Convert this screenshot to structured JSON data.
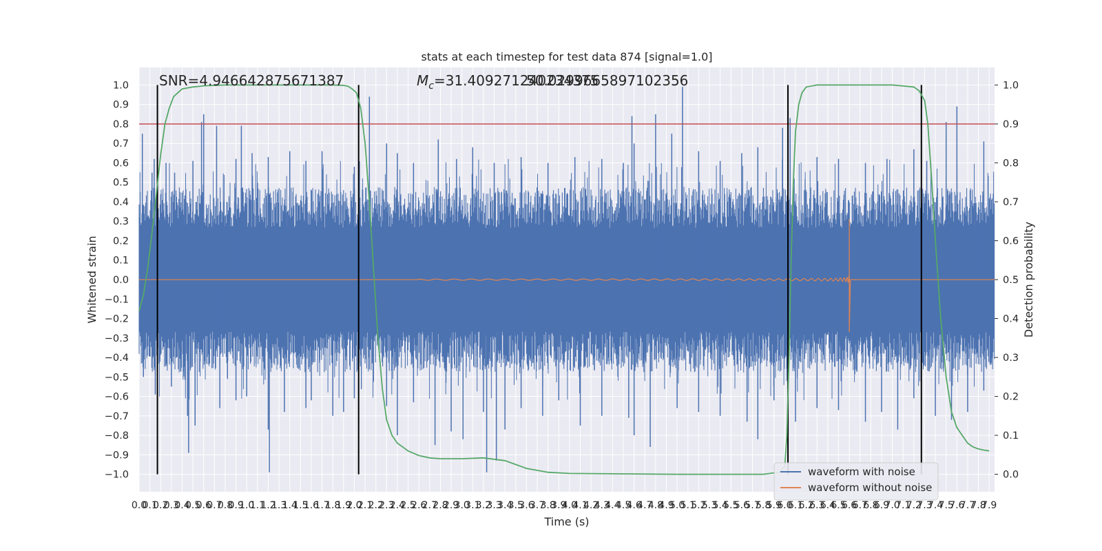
{
  "chart_data": {
    "type": "line",
    "title": "stats at each timestep for test data 874 [signal=1.0]",
    "xlabel": "Time (s)",
    "ylabel_left": "Whitened strain",
    "ylabel_right": "Detection probability",
    "xlim": [
      0.0,
      7.95
    ],
    "ylim_left": [
      -1.09,
      1.09
    ],
    "ylim_right": [
      -0.045,
      1.045
    ],
    "x_tick_labels": [
      "0.0",
      "0.1",
      "0.2",
      "0.3",
      "0.4",
      "0.5",
      "0.6",
      "0.7",
      "0.8",
      "0.9",
      "1.0",
      "1.1",
      "1.2",
      "1.3",
      "1.4",
      "1.5",
      "1.6",
      "1.7",
      "1.8",
      "1.9",
      "2.0",
      "2.1",
      "2.2",
      "2.3",
      "2.4",
      "2.5",
      "2.6",
      "2.7",
      "2.8",
      "2.9",
      "3.0",
      "3.1",
      "3.2",
      "3.3",
      "3.4",
      "3.5",
      "3.6",
      "3.7",
      "3.8",
      "3.9",
      "4.0",
      "4.1",
      "4.2",
      "4.3",
      "4.4",
      "4.5",
      "4.6",
      "4.7",
      "4.8",
      "4.9",
      "5.0",
      "5.1",
      "5.2",
      "5.3",
      "5.4",
      "5.5",
      "5.6",
      "5.7",
      "5.8",
      "5.9",
      "6.0",
      "6.1",
      "6.2",
      "6.3",
      "6.4",
      "6.5",
      "6.6",
      "6.7",
      "6.8",
      "6.9",
      "7.0",
      "7.1",
      "7.2",
      "7.3",
      "7.4",
      "7.5",
      "7.6",
      "7.7",
      "7.8",
      "7.9"
    ],
    "y_left_tick_labels": [
      "1.0",
      "0.9",
      "0.8",
      "0.7",
      "0.6",
      "0.5",
      "0.4",
      "0.3",
      "0.2",
      "0.1",
      "0.0",
      "−0.1",
      "−0.2",
      "−0.3",
      "−0.4",
      "−0.5",
      "−0.6",
      "−0.7",
      "−0.8",
      "−0.9",
      "−1.0"
    ],
    "y_right_tick_labels": [
      "1.0",
      "0.9",
      "0.8",
      "0.7",
      "0.6",
      "0.5",
      "0.4",
      "0.3",
      "0.2",
      "0.1",
      "0.0"
    ],
    "annotations": {
      "snr": "SNR=4.946642875671387",
      "mc_prefix": "M",
      "mc_sub": "c",
      "mc_value": "=31.409271240234375",
      "mc_overlap": "50.0299665897102356"
    },
    "series": [
      {
        "name": "waveform with noise",
        "color": "#4c72b0",
        "envelope": {
          "core_abs": 0.38,
          "peak_abs": 1.0
        },
        "spikes_up": [
          [
            0.03,
            0.75
          ],
          [
            0.12,
            0.55
          ],
          [
            0.14,
            0.62
          ],
          [
            0.25,
            0.6
          ],
          [
            0.33,
            0.55
          ],
          [
            0.5,
            0.61
          ],
          [
            0.58,
            0.81
          ],
          [
            0.6,
            0.85
          ],
          [
            0.72,
            0.79
          ],
          [
            0.9,
            0.62
          ],
          [
            0.95,
            0.79
          ],
          [
            1.05,
            0.65
          ],
          [
            1.2,
            0.63
          ],
          [
            1.4,
            0.66
          ],
          [
            1.55,
            0.61
          ],
          [
            1.7,
            0.66
          ],
          [
            2.0,
            0.58
          ],
          [
            2.14,
            0.94
          ],
          [
            2.3,
            0.7
          ],
          [
            2.4,
            0.65
          ],
          [
            2.55,
            0.6
          ],
          [
            2.78,
            0.72
          ],
          [
            2.95,
            0.62
          ],
          [
            3.1,
            0.68
          ],
          [
            3.3,
            0.6
          ],
          [
            3.55,
            0.63
          ],
          [
            3.8,
            0.6
          ],
          [
            4.05,
            0.63
          ],
          [
            4.3,
            0.62
          ],
          [
            4.5,
            0.6
          ],
          [
            4.58,
            0.84
          ],
          [
            4.6,
            0.7
          ],
          [
            4.8,
            0.85
          ],
          [
            4.95,
            0.75
          ],
          [
            5.05,
            0.99
          ],
          [
            5.2,
            0.66
          ],
          [
            5.4,
            0.61
          ],
          [
            5.6,
            0.65
          ],
          [
            5.75,
            0.68
          ],
          [
            5.98,
            0.78
          ],
          [
            6.05,
            0.83
          ],
          [
            6.3,
            0.63
          ],
          [
            6.5,
            0.62
          ],
          [
            6.75,
            0.6
          ],
          [
            6.95,
            0.62
          ],
          [
            7.2,
            0.67
          ],
          [
            7.32,
            0.61
          ],
          [
            7.5,
            0.81
          ],
          [
            7.6,
            0.89
          ],
          [
            7.85,
            0.71
          ]
        ],
        "spikes_down": [
          [
            0.04,
            -0.5
          ],
          [
            0.15,
            -0.59
          ],
          [
            0.3,
            -0.55
          ],
          [
            0.45,
            -0.7
          ],
          [
            0.46,
            -0.89
          ],
          [
            0.52,
            -0.75
          ],
          [
            0.75,
            -0.66
          ],
          [
            0.9,
            -0.62
          ],
          [
            1.0,
            -0.6
          ],
          [
            1.2,
            -0.77
          ],
          [
            1.21,
            -0.99
          ],
          [
            1.35,
            -0.68
          ],
          [
            1.55,
            -0.66
          ],
          [
            1.6,
            -0.62
          ],
          [
            1.8,
            -0.7
          ],
          [
            1.9,
            -0.68
          ],
          [
            2.0,
            -0.61
          ],
          [
            2.3,
            -0.65
          ],
          [
            2.4,
            -0.8
          ],
          [
            2.55,
            -0.63
          ],
          [
            2.75,
            -0.85
          ],
          [
            2.9,
            -0.78
          ],
          [
            3.01,
            -0.82
          ],
          [
            3.2,
            -0.68
          ],
          [
            3.23,
            -0.99
          ],
          [
            3.32,
            -0.93
          ],
          [
            3.4,
            -0.77
          ],
          [
            3.55,
            -0.66
          ],
          [
            3.75,
            -0.7
          ],
          [
            3.9,
            -0.62
          ],
          [
            4.1,
            -0.75
          ],
          [
            4.3,
            -0.7
          ],
          [
            4.55,
            -0.71
          ],
          [
            4.6,
            -0.8
          ],
          [
            4.75,
            -0.86
          ],
          [
            5.0,
            -0.66
          ],
          [
            5.2,
            -0.68
          ],
          [
            5.4,
            -0.7
          ],
          [
            5.65,
            -0.73
          ],
          [
            5.75,
            -0.82
          ],
          [
            5.9,
            -0.62
          ],
          [
            6.1,
            -0.73
          ],
          [
            6.3,
            -0.66
          ],
          [
            6.5,
            -0.67
          ],
          [
            6.75,
            -0.73
          ],
          [
            6.9,
            -0.68
          ],
          [
            7.05,
            -0.77
          ],
          [
            7.2,
            -0.61
          ],
          [
            7.4,
            -0.7
          ],
          [
            7.55,
            -0.72
          ],
          [
            7.7,
            -0.68
          ],
          [
            7.85,
            -0.57
          ]
        ]
      },
      {
        "name": "waveform without noise",
        "color": "#dd8452",
        "chirp": {
          "t_start": 2.6,
          "t_merger": 6.6,
          "amp_start": 0.003,
          "amp_max": 0.31,
          "amp_min": -0.27
        }
      },
      {
        "axis": "right",
        "color": "#55a868",
        "x": [
          0.0,
          0.04,
          0.08,
          0.12,
          0.16,
          0.2,
          0.24,
          0.28,
          0.32,
          0.36,
          0.4,
          0.5,
          0.6,
          0.8,
          1.0,
          1.5,
          1.8,
          1.9,
          1.94,
          1.98,
          2.02,
          2.06,
          2.1,
          2.14,
          2.18,
          2.22,
          2.26,
          2.3,
          2.35,
          2.4,
          2.5,
          2.6,
          2.7,
          2.8,
          3.0,
          3.2,
          3.4,
          3.6,
          3.8,
          4.0,
          5.0,
          5.8,
          5.95,
          6.0,
          6.02,
          6.04,
          6.06,
          6.08,
          6.1,
          6.13,
          6.16,
          6.2,
          6.3,
          6.5,
          6.8,
          7.0,
          7.2,
          7.25,
          7.3,
          7.33,
          7.36,
          7.4,
          7.45,
          7.5,
          7.55,
          7.6,
          7.65,
          7.7,
          7.75,
          7.8,
          7.85,
          7.9
        ],
        "y": [
          0.42,
          0.46,
          0.53,
          0.62,
          0.72,
          0.82,
          0.9,
          0.94,
          0.97,
          0.98,
          0.99,
          0.995,
          0.998,
          1.0,
          1.0,
          1.0,
          1.0,
          0.999,
          0.997,
          0.99,
          0.98,
          0.94,
          0.85,
          0.7,
          0.52,
          0.35,
          0.22,
          0.14,
          0.1,
          0.08,
          0.06,
          0.048,
          0.042,
          0.04,
          0.04,
          0.042,
          0.035,
          0.015,
          0.005,
          0.002,
          0.0,
          0.0,
          0.005,
          0.02,
          0.1,
          0.3,
          0.55,
          0.75,
          0.88,
          0.95,
          0.98,
          0.995,
          1.0,
          1.0,
          1.0,
          1.0,
          0.995,
          0.985,
          0.96,
          0.9,
          0.78,
          0.6,
          0.4,
          0.25,
          0.16,
          0.12,
          0.1,
          0.08,
          0.07,
          0.065,
          0.062,
          0.06
        ]
      }
    ],
    "hlines": [
      {
        "axis": "left",
        "y": 0.8,
        "color": "#c44e52"
      }
    ],
    "vlines": [
      {
        "x": 0.17
      },
      {
        "x": 2.04
      },
      {
        "x": 6.03
      },
      {
        "x": 7.27
      }
    ],
    "legend": {
      "placement": "lower-right"
    },
    "grid": true
  }
}
